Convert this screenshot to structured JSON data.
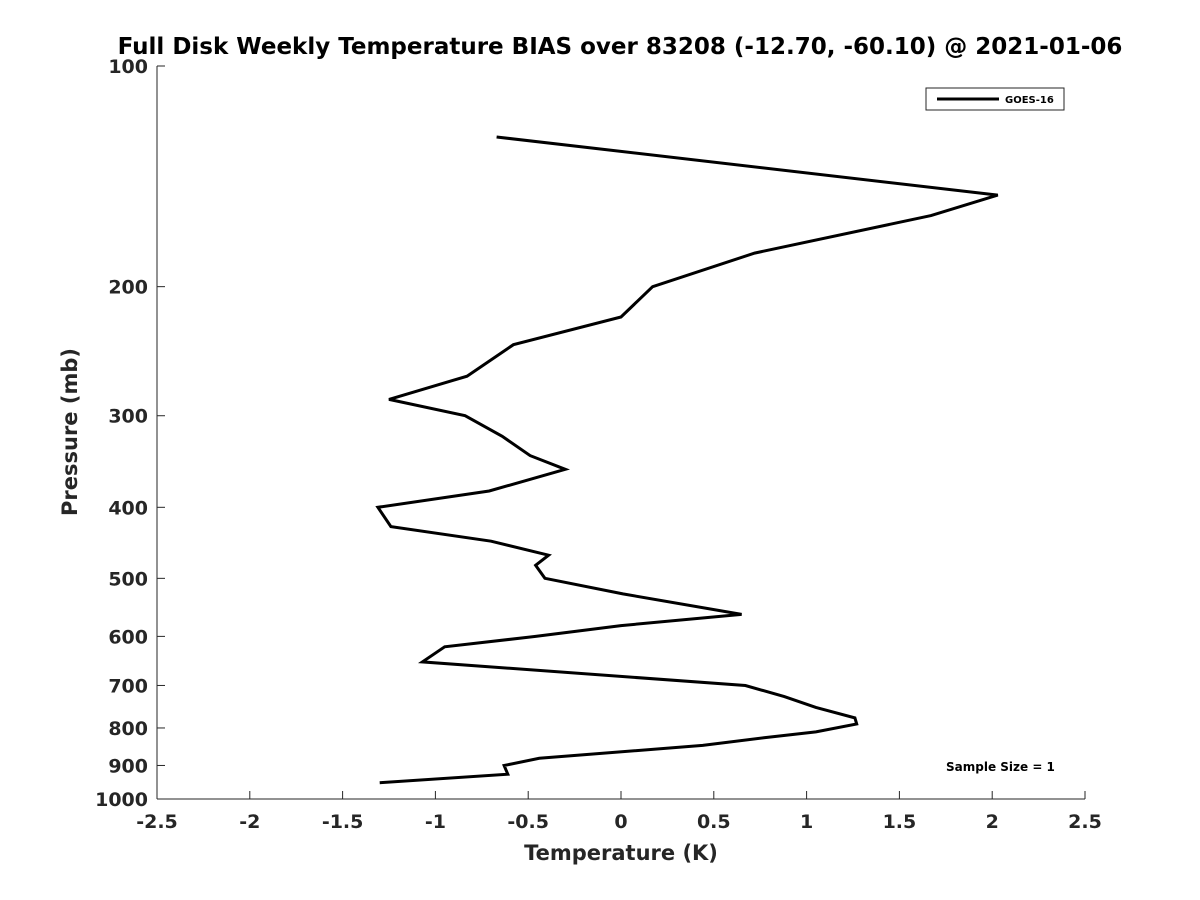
{
  "chart_data": {
    "type": "line",
    "title": "Full Disk Weekly Temperature BIAS over 83208 (-12.70, -60.10) @ 2021-01-06",
    "xlabel": "Temperature (K)",
    "ylabel": "Pressure (mb)",
    "xlim": [
      -2.5,
      2.5
    ],
    "ylim": [
      100,
      1000
    ],
    "yscale": "log",
    "y_reversed": true,
    "x_ticks": [
      "-2.5",
      "-2",
      "-1.5",
      "-1",
      "-0.5",
      "0",
      "0.5",
      "1",
      "1.5",
      "2",
      "2.5"
    ],
    "y_ticks": [
      "100",
      "200",
      "300",
      "400",
      "500",
      "600",
      "700",
      "800",
      "900",
      "1000"
    ],
    "grid": false,
    "legend_position": "top-right",
    "annotation": "Sample Size = 1",
    "series": [
      {
        "name": "GOES-16",
        "color": "#000000",
        "points": [
          {
            "x": -0.67,
            "y": 125
          },
          {
            "x": 2.03,
            "y": 150
          },
          {
            "x": 1.67,
            "y": 160
          },
          {
            "x": 0.72,
            "y": 180
          },
          {
            "x": 0.17,
            "y": 200
          },
          {
            "x": 0.0,
            "y": 220
          },
          {
            "x": -0.58,
            "y": 240
          },
          {
            "x": -0.83,
            "y": 265
          },
          {
            "x": -1.25,
            "y": 285
          },
          {
            "x": -0.84,
            "y": 300
          },
          {
            "x": -0.64,
            "y": 320
          },
          {
            "x": -0.49,
            "y": 340
          },
          {
            "x": -0.3,
            "y": 355
          },
          {
            "x": -0.71,
            "y": 380
          },
          {
            "x": -1.31,
            "y": 400
          },
          {
            "x": -1.24,
            "y": 425
          },
          {
            "x": -0.7,
            "y": 445
          },
          {
            "x": -0.39,
            "y": 465
          },
          {
            "x": -0.46,
            "y": 480
          },
          {
            "x": -0.41,
            "y": 500
          },
          {
            "x": 0.01,
            "y": 525
          },
          {
            "x": 0.65,
            "y": 560
          },
          {
            "x": 0.0,
            "y": 580
          },
          {
            "x": -0.46,
            "y": 600
          },
          {
            "x": -0.95,
            "y": 620
          },
          {
            "x": -1.07,
            "y": 650
          },
          {
            "x": 0.67,
            "y": 700
          },
          {
            "x": 0.88,
            "y": 725
          },
          {
            "x": 1.05,
            "y": 750
          },
          {
            "x": 1.26,
            "y": 775
          },
          {
            "x": 1.27,
            "y": 790
          },
          {
            "x": 1.05,
            "y": 810
          },
          {
            "x": 0.77,
            "y": 825
          },
          {
            "x": 0.44,
            "y": 845
          },
          {
            "x": -0.44,
            "y": 880
          },
          {
            "x": -0.63,
            "y": 900
          },
          {
            "x": -0.61,
            "y": 925
          },
          {
            "x": -1.3,
            "y": 950
          }
        ]
      }
    ]
  }
}
